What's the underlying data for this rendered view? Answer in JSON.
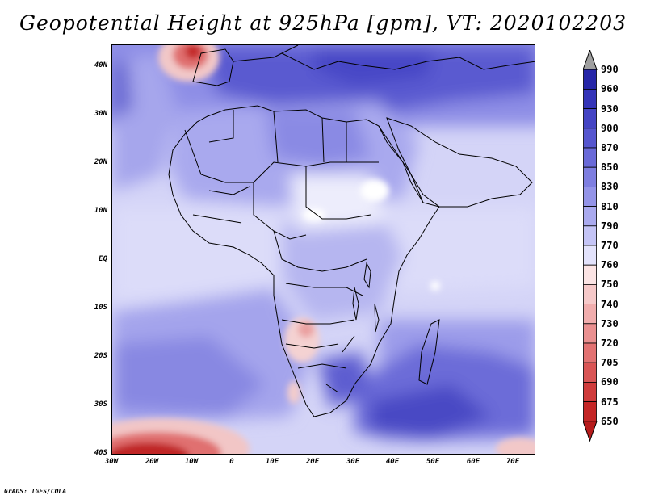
{
  "title": "Geopotential Height at 925hPa [gpm], VT: 2020102203",
  "credit": "GrADS: IGES/COLA",
  "lat_labels": [
    "40N",
    "30N",
    "20N",
    "10N",
    "EQ",
    "10S",
    "20S",
    "30S",
    "40S"
  ],
  "lon_labels": [
    "30W",
    "20W",
    "10W",
    "0",
    "10E",
    "20E",
    "30E",
    "40E",
    "50E",
    "60E",
    "70E"
  ],
  "colorbar": {
    "labels": [
      "990",
      "960",
      "930",
      "900",
      "870",
      "850",
      "830",
      "810",
      "790",
      "770",
      "760",
      "750",
      "740",
      "730",
      "720",
      "705",
      "690",
      "675",
      "650"
    ],
    "colors": [
      "#9f9f9f",
      "#2626a8",
      "#3434b8",
      "#4444c4",
      "#5656cf",
      "#6a6ad8",
      "#7e7ee0",
      "#9494e8",
      "#aaaaef",
      "#c4c4f6",
      "#e2e2fb",
      "#fbe4e4",
      "#f6c9c9",
      "#f1adad",
      "#ea9090",
      "#e27272",
      "#d95555",
      "#cf3b3b",
      "#c42626",
      "#b71b1b"
    ]
  },
  "map": {
    "land_color": "#000000",
    "ocean_base": "#d6d6f7",
    "high_color": "#3a3ab8",
    "low_color": "#c43030"
  }
}
